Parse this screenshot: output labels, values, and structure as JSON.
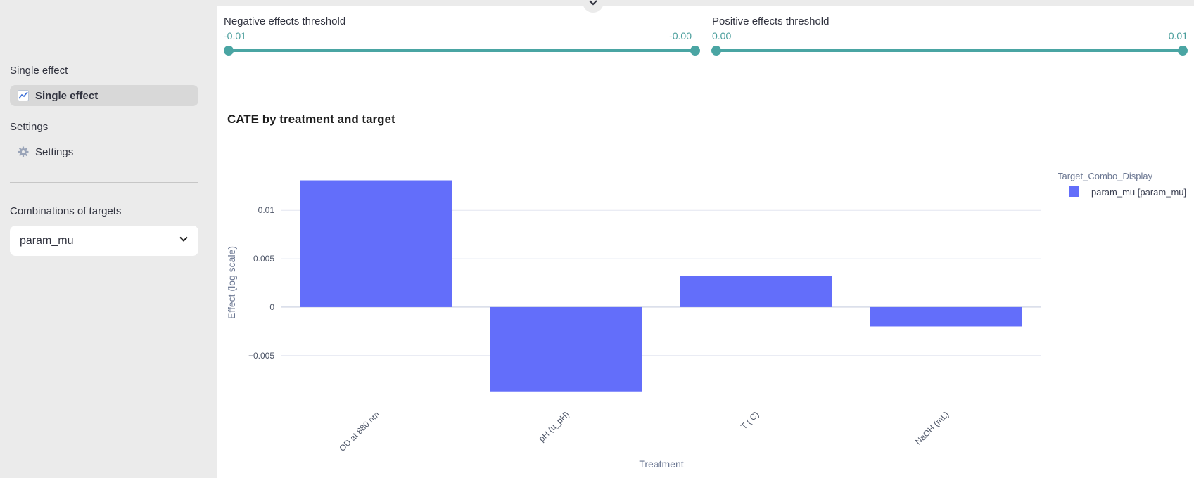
{
  "sidebar": {
    "section1": "Single effect",
    "item1": "Single effect",
    "section2": "Settings",
    "item2": "Settings",
    "select_label": "Combinations of targets",
    "select_value": "param_mu"
  },
  "sliders": {
    "negative": {
      "title": "Negative effects threshold",
      "min_label": "-0.01",
      "max_label": "-0.00"
    },
    "positive": {
      "title": "Positive effects threshold",
      "min_label": "0.00",
      "max_label": "0.01"
    }
  },
  "icons": [
    "chart-line-icon",
    "gear-icon",
    "chevron-down-icon"
  ],
  "colors": {
    "bar": "#636efa",
    "accent": "#4aa5a3",
    "sidebar_bg": "#ebebeb"
  },
  "chart_data": {
    "type": "bar",
    "title": "CATE by treatment and target",
    "xlabel": "Treatment",
    "ylabel": "Effect (log scale)",
    "categories": [
      "OD at 880 nm",
      "pH (u_pH)",
      "T ( C)",
      "NaOH (mL)"
    ],
    "series": [
      {
        "name": "param_mu [param_mu]",
        "values": [
          0.0131,
          -0.0087,
          0.0032,
          -0.002
        ]
      }
    ],
    "yticks": [
      0.01,
      0.005,
      0,
      -0.005
    ],
    "ytick_labels": [
      "0.01",
      "0.005",
      "0",
      "−0.005"
    ],
    "ylim": [
      -0.0093,
      0.0143
    ],
    "legend_title": "Target_Combo_Display",
    "legend_position": "top-right",
    "grid": true
  }
}
